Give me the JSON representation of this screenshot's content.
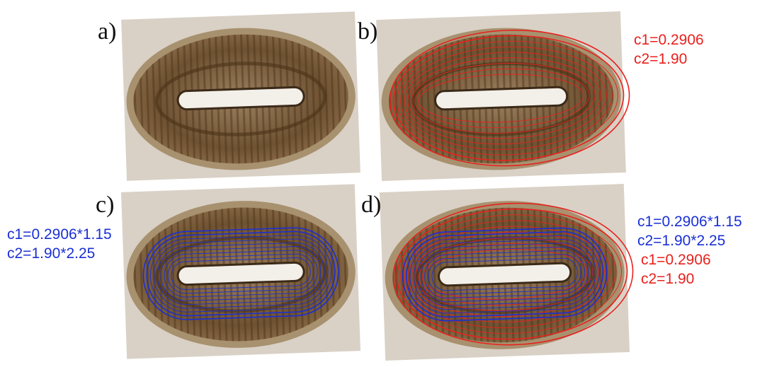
{
  "panels": [
    {
      "label": "a)"
    },
    {
      "label": "b)",
      "annotations": [
        {
          "text": "c1=0.2906",
          "color": "#e8211d"
        },
        {
          "text": "c2=1.90",
          "color": "#e8211d"
        }
      ]
    },
    {
      "label": "c)",
      "annotations": [
        {
          "text": "c1=0.2906*1.15",
          "color": "#1a2fd6"
        },
        {
          "text": "c2=1.90*2.25",
          "color": "#1a2fd6"
        }
      ]
    },
    {
      "label": "d)",
      "annotations": [
        {
          "text": "c1=0.2906*1.15",
          "color": "#1a2fd6"
        },
        {
          "text": "c2=1.90*2.25",
          "color": "#1a2fd6"
        },
        {
          "text": "c1=0.2906",
          "color": "#e8211d"
        },
        {
          "text": "c2=1.90",
          "color": "#e8211d"
        }
      ]
    }
  ]
}
